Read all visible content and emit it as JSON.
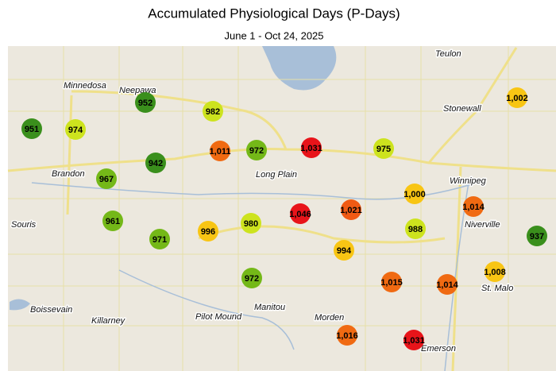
{
  "header": {
    "title": "Accumulated Physiological Days (P-Days)",
    "subtitle": "June 1 - Oct 24, 2025"
  },
  "map": {
    "places": [
      "Teulon",
      "Minnedosa",
      "Neepawa",
      "Stonewall",
      "Brandon",
      "Long Plain",
      "Winnipeg",
      "Souris",
      "Niverville",
      "St. Malo",
      "Boissevain",
      "Killarney",
      "Pilot Mound",
      "Manitou",
      "Morden",
      "Emerson"
    ],
    "stations": {
      "values": [
        951,
        952,
        974,
        982,
        1011,
        972,
        1031,
        975,
        1002,
        967,
        942,
        1000,
        1014,
        961,
        971,
        996,
        980,
        1046,
        1021,
        988,
        937,
        994,
        1015,
        1014,
        1008,
        972,
        1016,
        1031
      ],
      "value_labels": [
        "951",
        "952",
        "974",
        "982",
        "1,011",
        "972",
        "1,031",
        "975",
        "1,002",
        "967",
        "942",
        "1,000",
        "1,014",
        "961",
        "971",
        "996",
        "980",
        "1,046",
        "1,021",
        "988",
        "937",
        "994",
        "1,015",
        "1,014",
        "1,008",
        "972",
        "1,016",
        "1,031"
      ],
      "colors": [
        "#3a8f1c",
        "#3a8f1c",
        "#cde31e",
        "#cde31e",
        "#f06a12",
        "#74b818",
        "#e8141a",
        "#cde31e",
        "#f8c514",
        "#74b818",
        "#3a8f1c",
        "#f8c514",
        "#f06a12",
        "#74b818",
        "#74b818",
        "#f8c514",
        "#cde31e",
        "#e8141a",
        "#f05a14",
        "#cde31e",
        "#3a8f1c",
        "#f8c514",
        "#f06a12",
        "#f06a12",
        "#f8c514",
        "#74b818",
        "#f06a12",
        "#e8141a"
      ]
    }
  }
}
